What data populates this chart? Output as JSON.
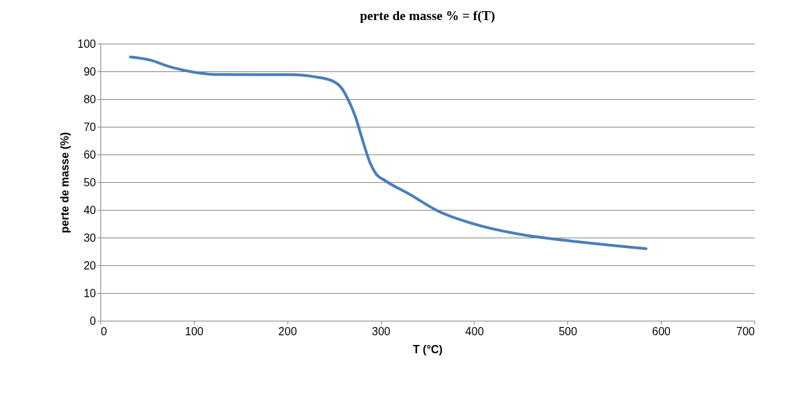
{
  "chart_data": {
    "type": "line",
    "title": "perte de masse % = f(T)",
    "xlabel": "T (°C)",
    "ylabel": "perte de masse (%)",
    "x": [
      32,
      53,
      73,
      100,
      122,
      167,
      204,
      228,
      248,
      258,
      265,
      273,
      280,
      288,
      295,
      305,
      330,
      363,
      400,
      447,
      498,
      542,
      584
    ],
    "series": [
      {
        "color": "#4a7ebb",
        "values": [
          95.2,
          94.1,
          91.8,
          89.7,
          88.9,
          88.8,
          88.8,
          88.1,
          86.6,
          84.0,
          79.9,
          73.5,
          65.8,
          57.5,
          53.0,
          50.5,
          45.8,
          39.3,
          34.9,
          31.3,
          29.0,
          27.4,
          26.0
        ]
      }
    ],
    "xlim": [
      0,
      700
    ],
    "xticks": [
      0,
      100,
      200,
      300,
      400,
      500,
      600,
      700
    ],
    "ylim": [
      0,
      100
    ],
    "yticks": [
      0,
      10,
      20,
      30,
      40,
      50,
      60,
      70,
      80,
      90,
      100
    ],
    "grid": "y",
    "marker": "none",
    "line_style": "solid"
  }
}
